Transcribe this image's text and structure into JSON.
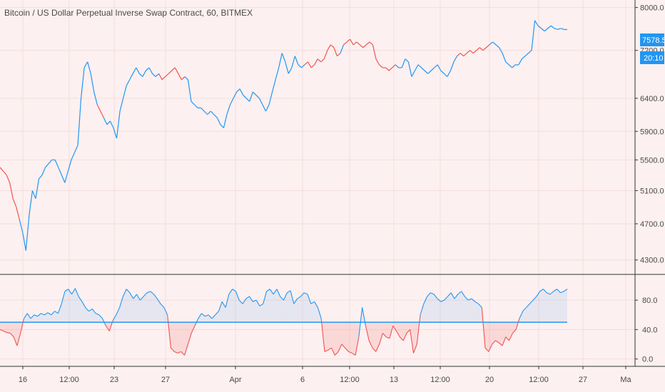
{
  "title": "Bitcoin / US Dollar Perpetual Inverse Swap Contract, 60, BITMEX",
  "colors": {
    "background": "#fdf0f0",
    "up": "#2196f3",
    "down": "#ef5350",
    "grid": "#f3dede",
    "axis": "#333333",
    "badge": "#2196f3"
  },
  "price_badge": "7578.5",
  "countdown_badge": "20:10",
  "chart_data": [
    {
      "type": "line",
      "panel": "price",
      "y_ticks": [
        4300,
        4700,
        5100,
        5500,
        5900,
        6400,
        7200,
        8000
      ],
      "y_tick_labels": [
        "4300.0",
        "4700.0",
        "5100.0",
        "5500.0",
        "5900.0",
        "6400.0",
        "7200.0",
        "8000.0"
      ],
      "ylim": [
        4150,
        8150
      ],
      "log_scale": true,
      "x_ticks": [
        "16",
        "12:00",
        "23",
        "27",
        "Apr",
        "6",
        "12:00",
        "13",
        "12:00",
        "20",
        "12:00",
        "27",
        "Ma"
      ],
      "series": [
        {
          "values": [
            5400,
            5350,
            5300,
            5200,
            5000,
            4900,
            4750,
            4600,
            4400,
            4800,
            5100,
            5000,
            5250,
            5300,
            5400,
            5450,
            5500,
            5500,
            5400,
            5300,
            5200,
            5350,
            5500,
            5600,
            5700,
            6400,
            6900,
            7000,
            6800,
            6500,
            6300,
            6200,
            6100,
            6000,
            6050,
            5950,
            5800,
            6200,
            6400,
            6600,
            6700,
            6800,
            6900,
            6800,
            6750,
            6850,
            6900,
            6800,
            6750,
            6800,
            6700,
            6750,
            6800,
            6850,
            6900,
            6800,
            6700,
            6750,
            6700,
            6350,
            6300,
            6250,
            6250,
            6200,
            6150,
            6200,
            6150,
            6100,
            6000,
            5950,
            6150,
            6300,
            6400,
            6500,
            6550,
            6450,
            6400,
            6350,
            6500,
            6450,
            6400,
            6300,
            6200,
            6300,
            6500,
            6700,
            6900,
            7150,
            7000,
            6800,
            6900,
            7100,
            6950,
            6900,
            6950,
            7000,
            6900,
            6950,
            7050,
            7000,
            7050,
            7200,
            7300,
            7250,
            7100,
            7150,
            7300,
            7350,
            7400,
            7300,
            7350,
            7300,
            7250,
            7300,
            7350,
            7300,
            7050,
            6950,
            6900,
            6900,
            6850,
            6900,
            6950,
            6900,
            6900,
            7050,
            7000,
            6750,
            6850,
            6950,
            6900,
            6850,
            6800,
            6850,
            6900,
            6950,
            6850,
            6800,
            6750,
            6850,
            7000,
            7100,
            7150,
            7100,
            7150,
            7200,
            7150,
            7200,
            7250,
            7200,
            7250,
            7300,
            7350,
            7300,
            7250,
            7150,
            7000,
            6950,
            6900,
            6950,
            6950,
            7050,
            7100,
            7150,
            7200,
            7750,
            7650,
            7600,
            7550,
            7600,
            7650,
            7600,
            7580,
            7600,
            7580,
            7578
          ]
        }
      ]
    },
    {
      "type": "area",
      "panel": "oscillator",
      "threshold": 50,
      "y_ticks": [
        0,
        40,
        80
      ],
      "y_tick_labels": [
        "0.0",
        "40.0",
        "80.0"
      ],
      "ylim": [
        -10,
        115
      ],
      "series": [
        {
          "values": [
            40,
            38,
            36,
            35,
            30,
            18,
            35,
            55,
            62,
            55,
            60,
            58,
            62,
            60,
            63,
            60,
            65,
            62,
            75,
            92,
            95,
            88,
            96,
            85,
            78,
            70,
            65,
            68,
            62,
            60,
            55,
            45,
            38,
            52,
            60,
            70,
            85,
            95,
            90,
            82,
            88,
            80,
            85,
            90,
            92,
            88,
            82,
            75,
            70,
            60,
            15,
            10,
            8,
            10,
            5,
            20,
            35,
            45,
            55,
            62,
            58,
            60,
            55,
            60,
            65,
            78,
            70,
            88,
            95,
            92,
            80,
            75,
            82,
            85,
            78,
            80,
            72,
            75,
            92,
            95,
            88,
            95,
            85,
            80,
            90,
            93,
            75,
            82,
            85,
            90,
            88,
            75,
            78,
            70,
            55,
            10,
            12,
            15,
            5,
            10,
            20,
            15,
            10,
            8,
            5,
            30,
            70,
            45,
            25,
            15,
            10,
            20,
            35,
            30,
            28,
            45,
            38,
            30,
            25,
            35,
            40,
            8,
            20,
            60,
            75,
            85,
            90,
            88,
            82,
            78,
            80,
            85,
            90,
            82,
            88,
            92,
            85,
            80,
            82,
            78,
            75,
            70,
            15,
            10,
            20,
            25,
            22,
            18,
            30,
            25,
            35,
            40,
            55,
            65,
            70,
            75,
            80,
            85,
            92,
            95,
            90,
            88,
            92,
            95,
            90,
            92,
            95
          ]
        }
      ]
    }
  ]
}
